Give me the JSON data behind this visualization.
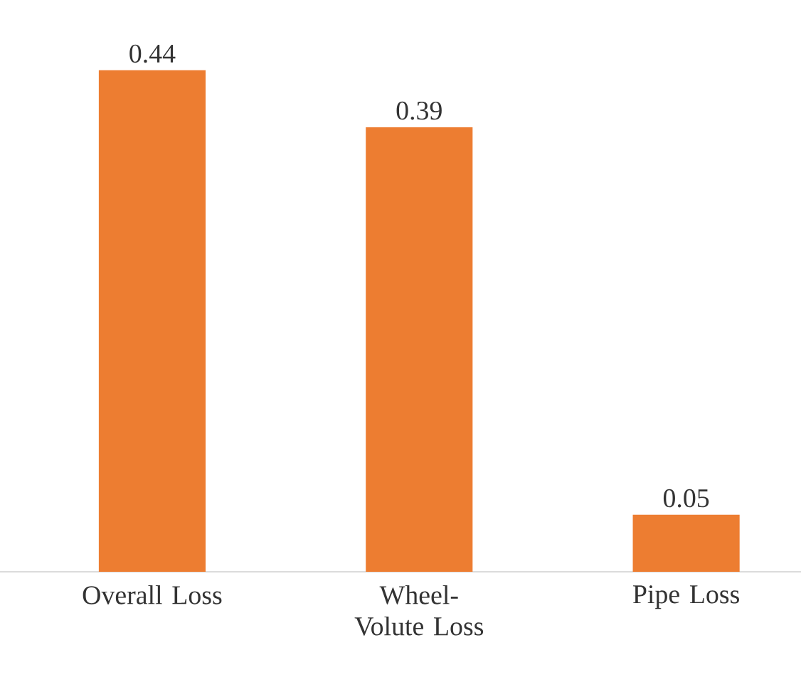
{
  "chart_data": {
    "type": "bar",
    "categories": [
      "Overall Loss",
      "Wheel-Volute Loss",
      "Pipe Loss"
    ],
    "values": [
      0.44,
      0.39,
      0.05
    ],
    "color": "#ed7d31",
    "data_labels": true,
    "grid": false
  }
}
